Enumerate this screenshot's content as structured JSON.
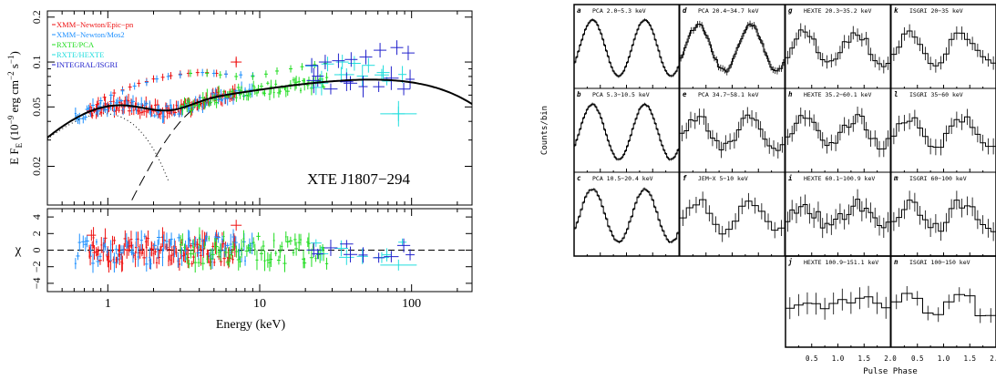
{
  "chart_data": [
    {
      "type": "scatter",
      "name": "spectrum",
      "ylabel_main": "E F",
      "ylabel_sub": "E",
      "ylabel_rest": " (10",
      "ylabel_exp1": "−9",
      "ylabel_unit": " erg cm",
      "ylabel_exp2": "−2",
      "ylabel_s": " s",
      "ylabel_exp3": "−1",
      "ylabel_close": ")",
      "residual_ylabel": "χ",
      "xlabel": "Energy (keV)",
      "annotation": "XTE J1807−294",
      "xscale": "log",
      "yscale": "log",
      "xlim": [
        0.4,
        250
      ],
      "ylim": [
        0.011,
        0.22
      ],
      "residual_ylim": [
        -5,
        5
      ],
      "x_ticks": [
        {
          "value": 1,
          "label": "1"
        },
        {
          "value": 10,
          "label": "10"
        },
        {
          "value": 100,
          "label": "100"
        }
      ],
      "y_ticks": [
        {
          "value": 0.02,
          "label": "0.02"
        },
        {
          "value": 0.05,
          "label": "0.05"
        },
        {
          "value": 0.1,
          "label": "0.1"
        },
        {
          "value": 0.2,
          "label": "0.2"
        }
      ],
      "residual_ticks": [
        {
          "value": -4,
          "label": "−4"
        },
        {
          "value": -2,
          "label": "−2"
        },
        {
          "value": 0,
          "label": "0"
        },
        {
          "value": 2,
          "label": "2"
        },
        {
          "value": 4,
          "label": "4"
        }
      ],
      "legend_position": "top-left",
      "series": [
        {
          "name": "XMM−Newton/Epic−pn",
          "color": "#ee1111",
          "emin": 0.75,
          "emax": 7.0,
          "points": [
            [
              0.78,
              0.045
            ],
            [
              0.85,
              0.052
            ],
            [
              0.95,
              0.058
            ],
            [
              1.1,
              0.062
            ],
            [
              1.25,
              0.065
            ],
            [
              1.4,
              0.068
            ],
            [
              1.6,
              0.072
            ],
            [
              1.8,
              0.074
            ],
            [
              2.0,
              0.077
            ],
            [
              2.3,
              0.079
            ],
            [
              2.6,
              0.081
            ],
            [
              3.0,
              0.083
            ],
            [
              3.4,
              0.084
            ],
            [
              3.9,
              0.085
            ],
            [
              4.5,
              0.085
            ],
            [
              5.2,
              0.084
            ],
            [
              6.0,
              0.083
            ],
            [
              7.0,
              0.1
            ]
          ]
        },
        {
          "name": "XMM−Newton/Mos2",
          "color": "#1e90ff",
          "emin": 0.6,
          "emax": 9.0,
          "points": [
            [
              0.62,
              0.042
            ],
            [
              0.75,
              0.049
            ],
            [
              0.9,
              0.055
            ],
            [
              1.05,
              0.06
            ],
            [
              1.25,
              0.064
            ],
            [
              1.5,
              0.069
            ],
            [
              1.8,
              0.073
            ],
            [
              2.1,
              0.077
            ],
            [
              2.5,
              0.08
            ],
            [
              3.0,
              0.082
            ],
            [
              3.5,
              0.084
            ],
            [
              4.2,
              0.085
            ],
            [
              5.0,
              0.084
            ],
            [
              6.0,
              0.083
            ],
            [
              7.5,
              0.082
            ],
            [
              9.0,
              0.081
            ]
          ]
        },
        {
          "name": "RXTE/PCA",
          "color": "#22dd22",
          "emin": 3.0,
          "emax": 28.0,
          "points": [
            [
              3.5,
              0.084
            ],
            [
              4.5,
              0.084
            ],
            [
              5.5,
              0.082
            ],
            [
              7,
              0.08
            ],
            [
              9,
              0.08
            ],
            [
              11,
              0.083
            ],
            [
              13,
              0.087
            ],
            [
              16,
              0.09
            ],
            [
              19,
              0.093
            ],
            [
              23,
              0.096
            ],
            [
              27,
              0.098
            ]
          ]
        },
        {
          "name": "RXTE/HEXTE",
          "color": "#22dddd",
          "emin": 20.0,
          "emax": 100.0,
          "points": [
            [
              22,
              0.094
            ],
            [
              28,
              0.097
            ],
            [
              35,
              0.1
            ],
            [
              42,
              0.098
            ],
            [
              52,
              0.095
            ],
            [
              65,
              0.085
            ],
            [
              82,
              0.045
            ]
          ]
        },
        {
          "name": "INTEGRAL/ISGRI",
          "color": "#2222cc",
          "emin": 20.0,
          "emax": 110.0,
          "points": [
            [
              22,
              0.095
            ],
            [
              27,
              0.1
            ],
            [
              33,
              0.102
            ],
            [
              40,
              0.104
            ],
            [
              50,
              0.108
            ],
            [
              62,
              0.12
            ],
            [
              80,
              0.125
            ],
            [
              95,
              0.115
            ]
          ]
        }
      ]
    },
    {
      "type": "line",
      "name": "pulse profiles",
      "ylabel": "Counts/bin",
      "xlabel": "Pulse Phase",
      "xlim": [
        0,
        2
      ],
      "x_tick_labels": [
        "0.5",
        "1.0",
        "1.5",
        "2.0"
      ],
      "panels": [
        {
          "letter": "a",
          "label": "PCA 2.0−5.3 keV",
          "col": 0,
          "row": 0,
          "bins": 60,
          "amp": 0.8,
          "noise": 0.01
        },
        {
          "letter": "b",
          "label": "PCA 5.3−10.5 keV",
          "col": 0,
          "row": 1,
          "bins": 60,
          "amp": 0.78,
          "noise": 0.015
        },
        {
          "letter": "c",
          "label": "PCA 10.5−20.4 keV",
          "col": 0,
          "row": 2,
          "bins": 50,
          "amp": 0.75,
          "noise": 0.02
        },
        {
          "letter": "d",
          "label": "PCA 20.4−34.7 keV",
          "col": 1,
          "row": 0,
          "bins": 50,
          "amp": 0.65,
          "noise": 0.05
        },
        {
          "letter": "e",
          "label": "PCA 34.7−58.1 keV",
          "col": 1,
          "row": 1,
          "bins": 24,
          "amp": 0.45,
          "noise": 0.12
        },
        {
          "letter": "f",
          "label": "JEM−X 5−10 keV",
          "col": 1,
          "row": 2,
          "bins": 16,
          "amp": 0.45,
          "noise": 0.12
        },
        {
          "letter": "g",
          "label": "HEXTE 20.3−35.2 keV",
          "col": 2,
          "row": 0,
          "bins": 24,
          "amp": 0.45,
          "noise": 0.1
        },
        {
          "letter": "h",
          "label": "HEXTE 35.2−60.1 keV",
          "col": 2,
          "row": 1,
          "bins": 24,
          "amp": 0.4,
          "noise": 0.12
        },
        {
          "letter": "i",
          "label": "HEXTE 60.1−100.9 keV",
          "col": 2,
          "row": 2,
          "bins": 24,
          "amp": 0.3,
          "noise": 0.15
        },
        {
          "letter": "j",
          "label": "HEXTE 100.9−151.1 keV",
          "col": 2,
          "row": 3,
          "bins": 12,
          "amp": 0.15,
          "noise": 0.15
        },
        {
          "letter": "k",
          "label": "ISGRI 20−35 keV",
          "col": 3,
          "row": 0,
          "bins": 20,
          "amp": 0.45,
          "noise": 0.1
        },
        {
          "letter": "l",
          "label": "ISGRI 35−60 keV",
          "col": 3,
          "row": 1,
          "bins": 20,
          "amp": 0.4,
          "noise": 0.12
        },
        {
          "letter": "m",
          "label": "ISGRI 60−100 keV",
          "col": 3,
          "row": 2,
          "bins": 20,
          "amp": 0.35,
          "noise": 0.14
        },
        {
          "letter": "n",
          "label": "ISGRI 100−150 keV",
          "col": 3,
          "row": 3,
          "bins": 10,
          "amp": 0.35,
          "noise": 0.1
        }
      ]
    }
  ]
}
